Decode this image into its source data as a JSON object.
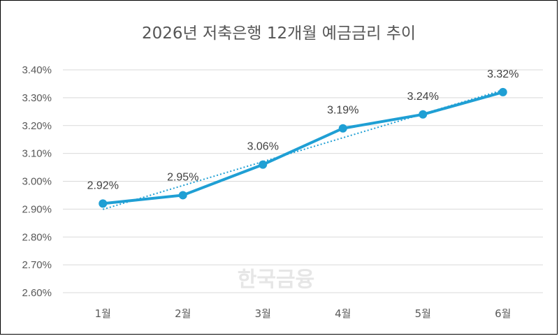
{
  "chart_data": {
    "type": "line",
    "title": "2026년 저축은행 12개월 예금금리 추이",
    "categories": [
      "1월",
      "2월",
      "3월",
      "4월",
      "5월",
      "6월"
    ],
    "series": [
      {
        "values": [
          2.92,
          2.95,
          3.06,
          3.19,
          3.24,
          3.32
        ],
        "data_labels": [
          "2.92%",
          "2.95%",
          "3.06%",
          "3.19%",
          "3.24%",
          "3.32%"
        ],
        "color": "#1f9fd4"
      }
    ],
    "trendline": {
      "type": "linear",
      "style": "dotted",
      "color": "#1f9fd4"
    },
    "ylim": [
      2.6,
      3.4
    ],
    "yticks": [
      2.6,
      2.7,
      2.8,
      2.9,
      3.0,
      3.1,
      3.2,
      3.3,
      3.4
    ],
    "ytick_labels": [
      "2.60%",
      "2.70%",
      "2.80%",
      "2.90%",
      "3.00%",
      "3.10%",
      "3.20%",
      "3.30%",
      "3.40%"
    ],
    "grid": true,
    "legend": "none",
    "xlabel": "",
    "ylabel": ""
  },
  "watermark": {
    "text": "한국금융"
  }
}
